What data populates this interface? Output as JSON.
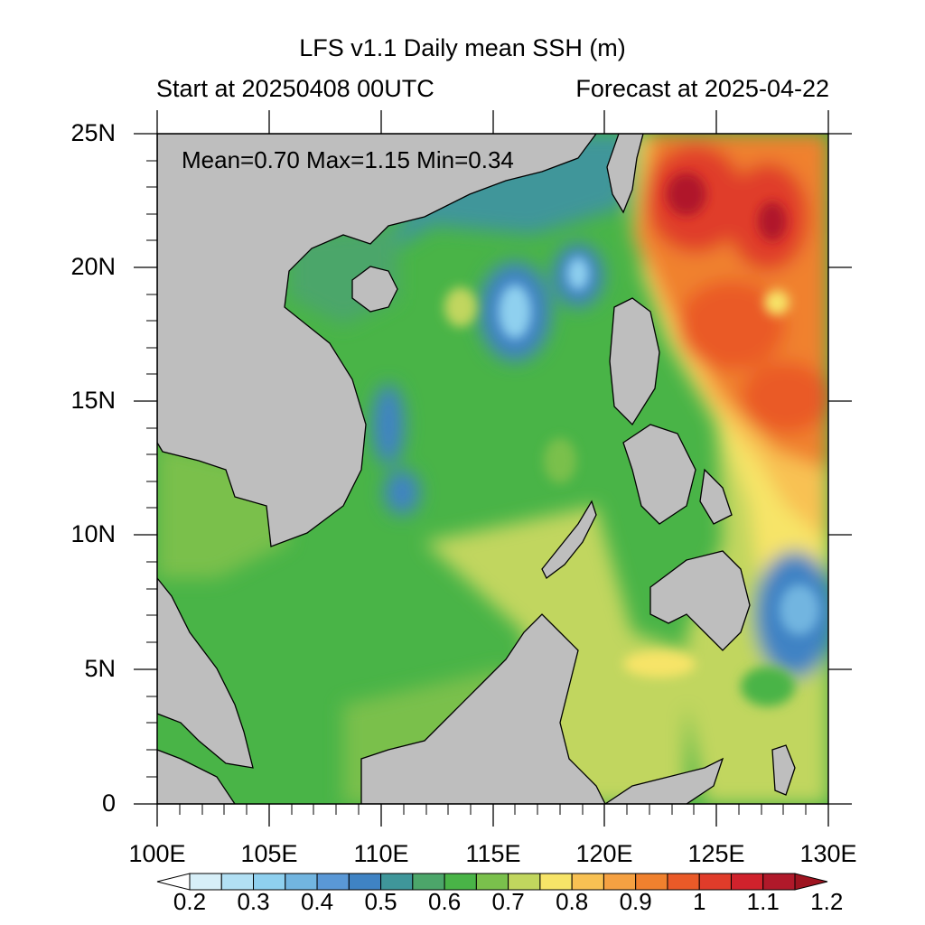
{
  "title": "LFS v1.1 Daily mean SSH (m)",
  "start_label": "Start at 20250408 00UTC",
  "forecast_label": "Forecast at 2025-04-22",
  "stats": "Mean=0.70  Max=1.15  Min=0.34",
  "lat_labels": [
    "25N",
    "20N",
    "15N",
    "10N",
    "5N",
    "0"
  ],
  "lon_labels": [
    "100E",
    "105E",
    "110E",
    "115E",
    "120E",
    "125E",
    "130E"
  ],
  "colorbar": {
    "labels": [
      "0.2",
      "0.3",
      "0.4",
      "0.5",
      "0.6",
      "0.7",
      "0.8",
      "0.9",
      "1",
      "1.1",
      "1.2"
    ],
    "colors": [
      "#ffffff",
      "#d7eff8",
      "#b2e0f4",
      "#8fd0ef",
      "#72b5e0",
      "#5a98d6",
      "#3f83c4",
      "#3f969a",
      "#4ca66a",
      "#49b447",
      "#7ac04c",
      "#c1d65e",
      "#f7e468",
      "#f8c153",
      "#f5a142",
      "#f0812e",
      "#ea5a28",
      "#e03c2a",
      "#d0222c",
      "#b0192a",
      "#9e1420"
    ]
  },
  "colors": {
    "land": "#bebebe",
    "coast": "#000000"
  }
}
